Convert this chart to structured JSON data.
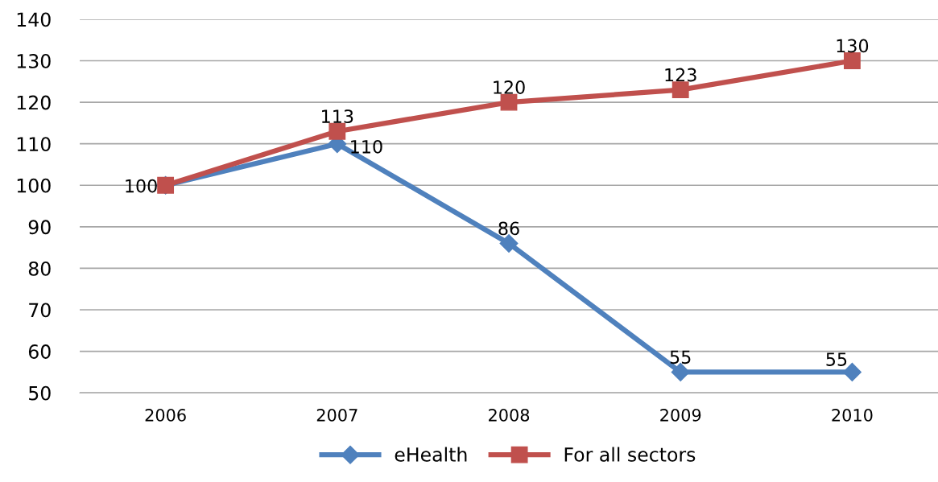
{
  "chart_data": {
    "type": "line",
    "categories": [
      "2006",
      "2007",
      "2008",
      "2009",
      "2010"
    ],
    "series": [
      {
        "name": "eHealth",
        "color": "#4f81bd",
        "values": [
          100,
          110,
          86,
          55,
          55
        ],
        "marker": "diamond",
        "value_labels": [
          "100",
          "110",
          "86",
          "55",
          "55"
        ]
      },
      {
        "name": "For all sectors",
        "color": "#c0504d",
        "values": [
          100,
          113,
          120,
          123,
          130
        ],
        "marker": "square",
        "value_labels": [
          null,
          "113",
          "120",
          "123",
          "130"
        ]
      }
    ],
    "ylim": [
      50,
      140
    ],
    "yticks": [
      50,
      60,
      70,
      80,
      90,
      100,
      110,
      120,
      130,
      140
    ],
    "grid": "y",
    "legend": "bottom",
    "line_style": "solid"
  }
}
